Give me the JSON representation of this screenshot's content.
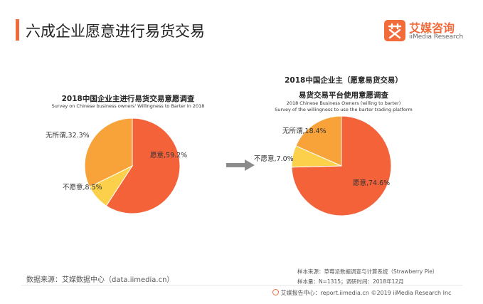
{
  "page": {
    "title": "六成企业愿意进行易货交易",
    "accent_color": "#f26b3a"
  },
  "logo": {
    "icon": "aimei-logo-icon",
    "name_cn": "艾媒咨询",
    "name_en": "iiMedia Research"
  },
  "arrow": {
    "icon": "right-arrow-icon"
  },
  "chart_data": [
    {
      "type": "pie",
      "title": "2018中国企业主进行易货交易意愿调查",
      "subtitle": "Survey on Chinese business owners' Willingness to Barter  in 2018",
      "slices": [
        {
          "label": "愿意",
          "value": 59.2,
          "display": "愿意,59.2%",
          "color": "#f4623a"
        },
        {
          "label": "不愿意",
          "value": 8.5,
          "display": "不愿意,8.5%",
          "color": "#fcd04a"
        },
        {
          "label": "无所谓",
          "value": 32.3,
          "display": "无所谓,32.3%",
          "color": "#f8a23a"
        }
      ]
    },
    {
      "type": "pie",
      "title": "2018中国企业主（愿意易货交易）",
      "title2": "易货交易平台使用意愿调查",
      "subtitle": "2018 Chinese Business Owners (willing to barter)",
      "subtitle2": "Survey of the willingness to use the barter trading platform",
      "slices": [
        {
          "label": "愿意",
          "value": 74.6,
          "display": "愿意,74.6%",
          "color": "#f4623a"
        },
        {
          "label": "不愿意",
          "value": 7.0,
          "display": "不愿意,7.0%",
          "color": "#fcd04a"
        },
        {
          "label": "无所谓",
          "value": 18.4,
          "display": "无所谓,18.4%",
          "color": "#f8a23a"
        }
      ]
    }
  ],
  "source": {
    "left": "数据来源：艾媒数据中心（data.iimedia.cn）",
    "sample_source": "样本来源：草莓派数据调查与计算系统（Strawberry  Pie）",
    "sample_size": "样本量：N=1315；调研时间：2018年12月"
  },
  "footer": {
    "icon": "aimei-footer-icon",
    "text": "艾媒报告中心：report.iimedia.cn  ©2019  iiMedia Research  Inc"
  }
}
